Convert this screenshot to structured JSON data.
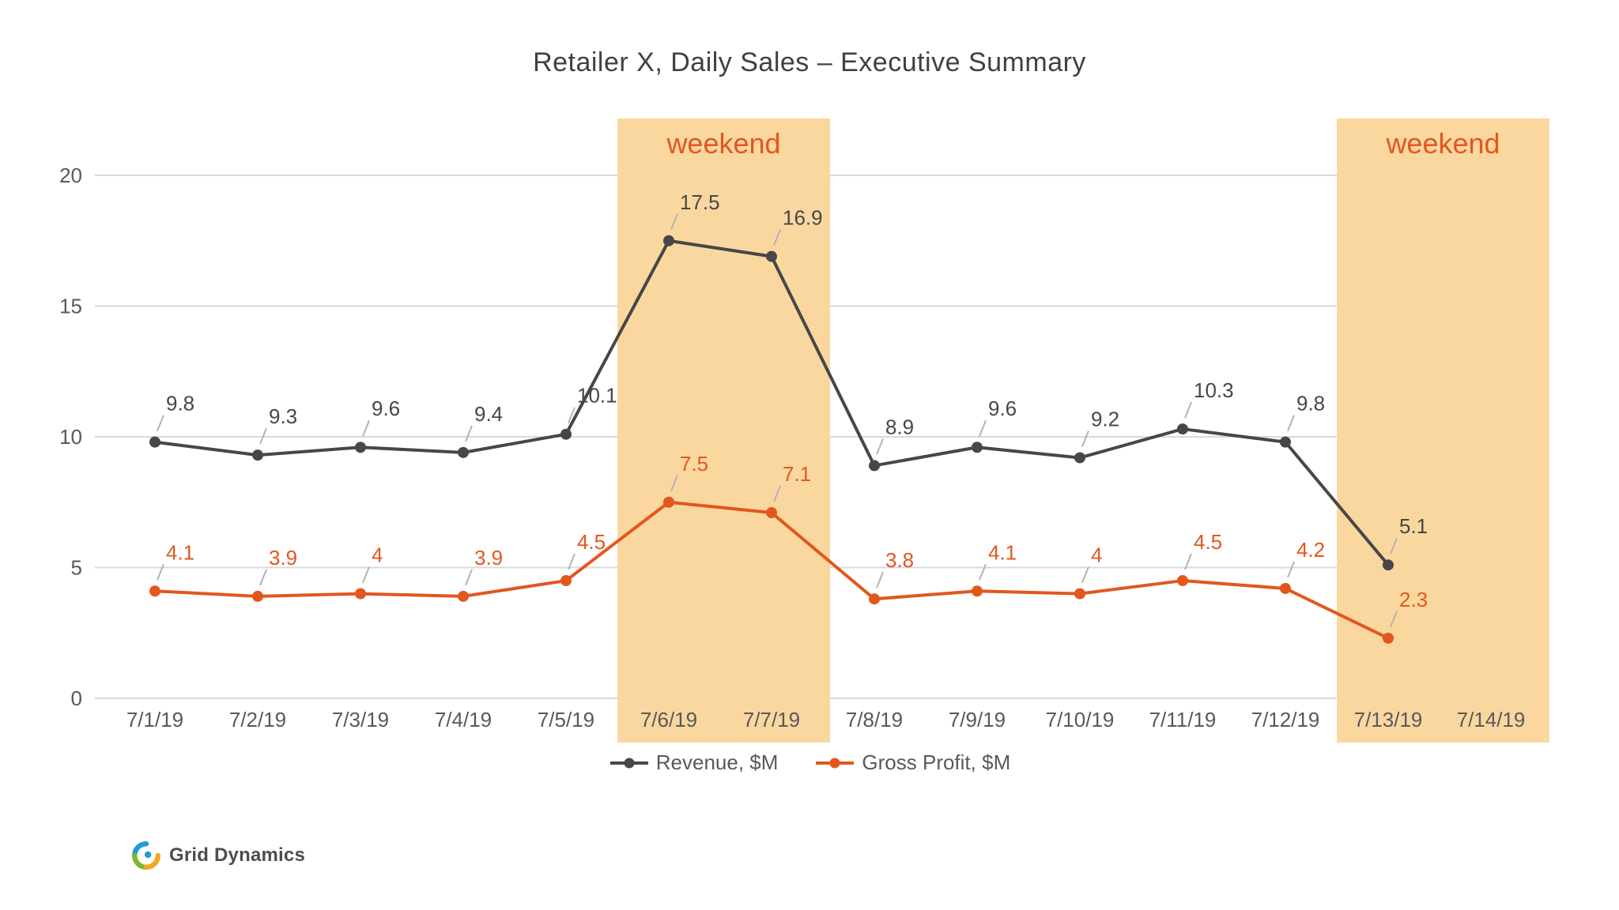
{
  "title": "Retailer X, Daily Sales – Executive Summary",
  "logo": {
    "text": "Grid Dynamics"
  },
  "chart_data": {
    "type": "line",
    "title": "Retailer X, Daily Sales – Executive Summary",
    "x": [
      "7/1/19",
      "7/2/19",
      "7/3/19",
      "7/4/19",
      "7/5/19",
      "7/6/19",
      "7/7/19",
      "7/8/19",
      "7/9/19",
      "7/10/19",
      "7/11/19",
      "7/12/19",
      "7/13/19",
      "7/14/19"
    ],
    "series": [
      {
        "id": "revenue",
        "name": "Revenue, $M",
        "color": "#474747",
        "values": [
          9.8,
          9.3,
          9.6,
          9.4,
          10.1,
          17.5,
          16.9,
          8.9,
          9.6,
          9.2,
          10.3,
          9.8,
          5.1
        ],
        "labels": [
          "9.8",
          "9.3",
          "9.6",
          "9.4",
          "10.1",
          "17.5",
          "16.9",
          "8.9",
          "9.6",
          "9.2",
          "10.3",
          "9.8",
          "5.1"
        ]
      },
      {
        "id": "gross-profit",
        "name": "Gross Profit, $M",
        "color": "#e2571e",
        "values": [
          4.1,
          3.9,
          4,
          3.9,
          4.5,
          7.5,
          7.1,
          3.8,
          4.1,
          4,
          4.5,
          4.2,
          2.3
        ],
        "labels": [
          "4.1",
          "3.9",
          "4",
          "3.9",
          "4.5",
          "7.5",
          "7.1",
          "3.8",
          "4.1",
          "4",
          "4.5",
          "4.2",
          "2.3"
        ]
      }
    ],
    "ylim": [
      0,
      20
    ],
    "yticks": [
      0,
      5,
      10,
      15,
      20
    ],
    "ytick_labels": [
      "0",
      "5",
      "10",
      "15",
      "20"
    ],
    "grid": true,
    "legend_position": "bottom",
    "annotations": [
      {
        "text": "weekend",
        "band_x": [
          "7/6/19",
          "7/7/19"
        ]
      },
      {
        "text": "weekend",
        "band_x": [
          "7/13/19",
          "7/14/19"
        ]
      }
    ],
    "band_color": "#fbd7a0",
    "annotation_color": "#e2571e",
    "grid_color": "#d9d9d9",
    "axis_text_color": "#595959",
    "leader_color": "#b3b3b3"
  }
}
